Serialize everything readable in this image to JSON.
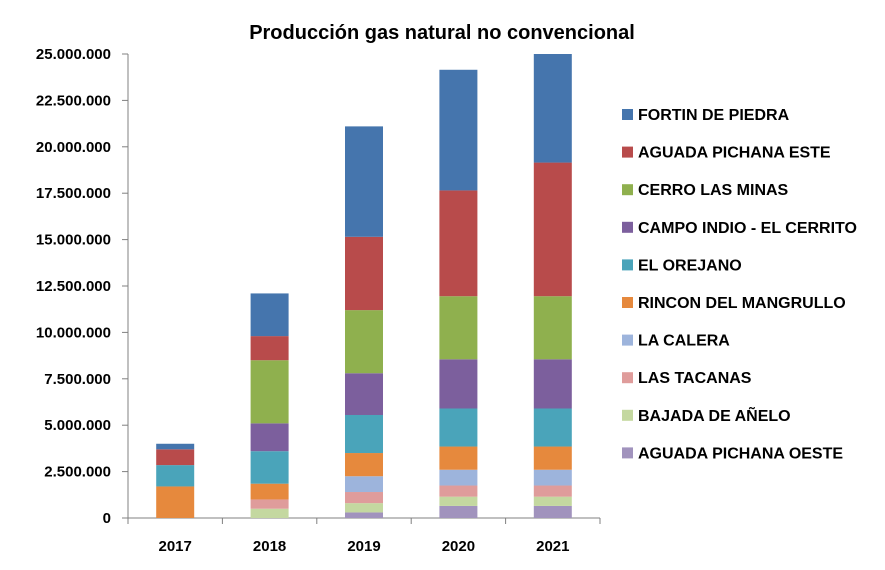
{
  "chart_data": {
    "type": "bar",
    "stacked": true,
    "title": "Producción  gas natural  no convencional",
    "xlabel": "",
    "ylabel": "",
    "categories": [
      "2017",
      "2018",
      "2019",
      "2020",
      "2021"
    ],
    "ylim": [
      0,
      25000000
    ],
    "yticks": [
      0,
      2500000,
      5000000,
      7500000,
      10000000,
      12500000,
      15000000,
      17500000,
      20000000,
      22500000,
      25000000
    ],
    "ytick_labels": [
      "0",
      "2.500.000",
      "5.000.000",
      "7.500.000",
      "10.000.000",
      "12.500.000",
      "15.000.000",
      "17.500.000",
      "20.000.000",
      "22.500.000",
      "25.000.000"
    ],
    "grid": false,
    "legend_position": "right",
    "series": [
      {
        "name": "AGUADA PICHANA OESTE",
        "color": "#a193bd",
        "values": [
          0,
          0,
          300000,
          650000,
          650000
        ]
      },
      {
        "name": "BAJADA DE AÑELO",
        "color": "#c4d8a0",
        "values": [
          0,
          500000,
          500000,
          500000,
          500000
        ]
      },
      {
        "name": "LAS TACANAS",
        "color": "#df9c9b",
        "values": [
          0,
          500000,
          600000,
          600000,
          600000
        ]
      },
      {
        "name": "LA CALERA",
        "color": "#9db4dc",
        "values": [
          0,
          0,
          850000,
          850000,
          850000
        ]
      },
      {
        "name": "RINCON DEL MANGRULLO",
        "color": "#e6893d",
        "values": [
          1700000,
          850000,
          1250000,
          1250000,
          1250000
        ]
      },
      {
        "name": "EL OREJANO",
        "color": "#4aa4ba",
        "values": [
          1150000,
          1750000,
          2050000,
          2050000,
          2050000
        ]
      },
      {
        "name": "CAMPO INDIO - EL CERRITO",
        "color": "#7c5f9d",
        "values": [
          0,
          1500000,
          2250000,
          2650000,
          2650000
        ]
      },
      {
        "name": "CERRO LAS MINAS",
        "color": "#8fb04e",
        "values": [
          0,
          3400000,
          3400000,
          3400000,
          3400000
        ]
      },
      {
        "name": "AGUADA PICHANA ESTE",
        "color": "#b84b4b",
        "values": [
          850000,
          1300000,
          3950000,
          5700000,
          7200000
        ]
      },
      {
        "name": "FORTIN DE PIEDRA",
        "color": "#4575ad",
        "values": [
          300000,
          2300000,
          5950000,
          6500000,
          5850000
        ]
      }
    ],
    "legend_order": [
      "FORTIN DE PIEDRA",
      "AGUADA PICHANA ESTE",
      "CERRO LAS MINAS",
      "CAMPO INDIO - EL CERRITO",
      "EL OREJANO",
      "RINCON DEL MANGRULLO",
      "LA CALERA",
      "LAS TACANAS",
      "BAJADA DE AÑELO",
      "AGUADA PICHANA OESTE"
    ]
  }
}
